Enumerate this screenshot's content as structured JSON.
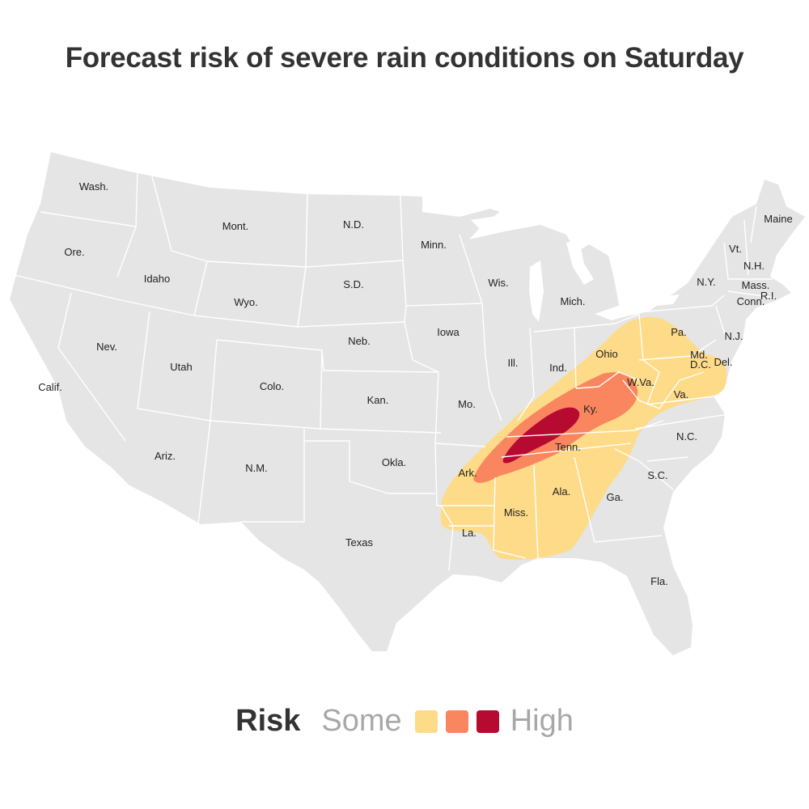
{
  "title": "Forecast risk of severe rain conditions on Saturday",
  "legend": {
    "title": "Risk",
    "low_label": "Some",
    "high_label": "High",
    "levels": [
      {
        "name": "some",
        "color": "#fedb89"
      },
      {
        "name": "moderate",
        "color": "#f9865f"
      },
      {
        "name": "high",
        "color": "#b60a31"
      }
    ]
  },
  "colors": {
    "land": "#e5e5e5",
    "borders": "#ffffff",
    "label_text": "#222222"
  },
  "state_labels": [
    "Wash.",
    "Ore.",
    "Calif.",
    "Idaho",
    "Nev.",
    "Mont.",
    "Wyo.",
    "Utah",
    "Ariz.",
    "Colo.",
    "N.M.",
    "N.D.",
    "S.D.",
    "Neb.",
    "Kan.",
    "Okla.",
    "Texas",
    "Minn.",
    "Iowa",
    "Mo.",
    "Ark.",
    "La.",
    "Wis.",
    "Ill.",
    "Mich.",
    "Ind.",
    "Ohio",
    "Ky.",
    "Tenn.",
    "Miss.",
    "Ala.",
    "Ga.",
    "Fla.",
    "S.C.",
    "N.C.",
    "Va.",
    "W.Va.",
    "Pa.",
    "Md.",
    "D.C.",
    "Del.",
    "N.J.",
    "N.Y.",
    "Conn.",
    "R.I.",
    "Mass.",
    "Vt.",
    "N.H.",
    "Maine"
  ]
}
